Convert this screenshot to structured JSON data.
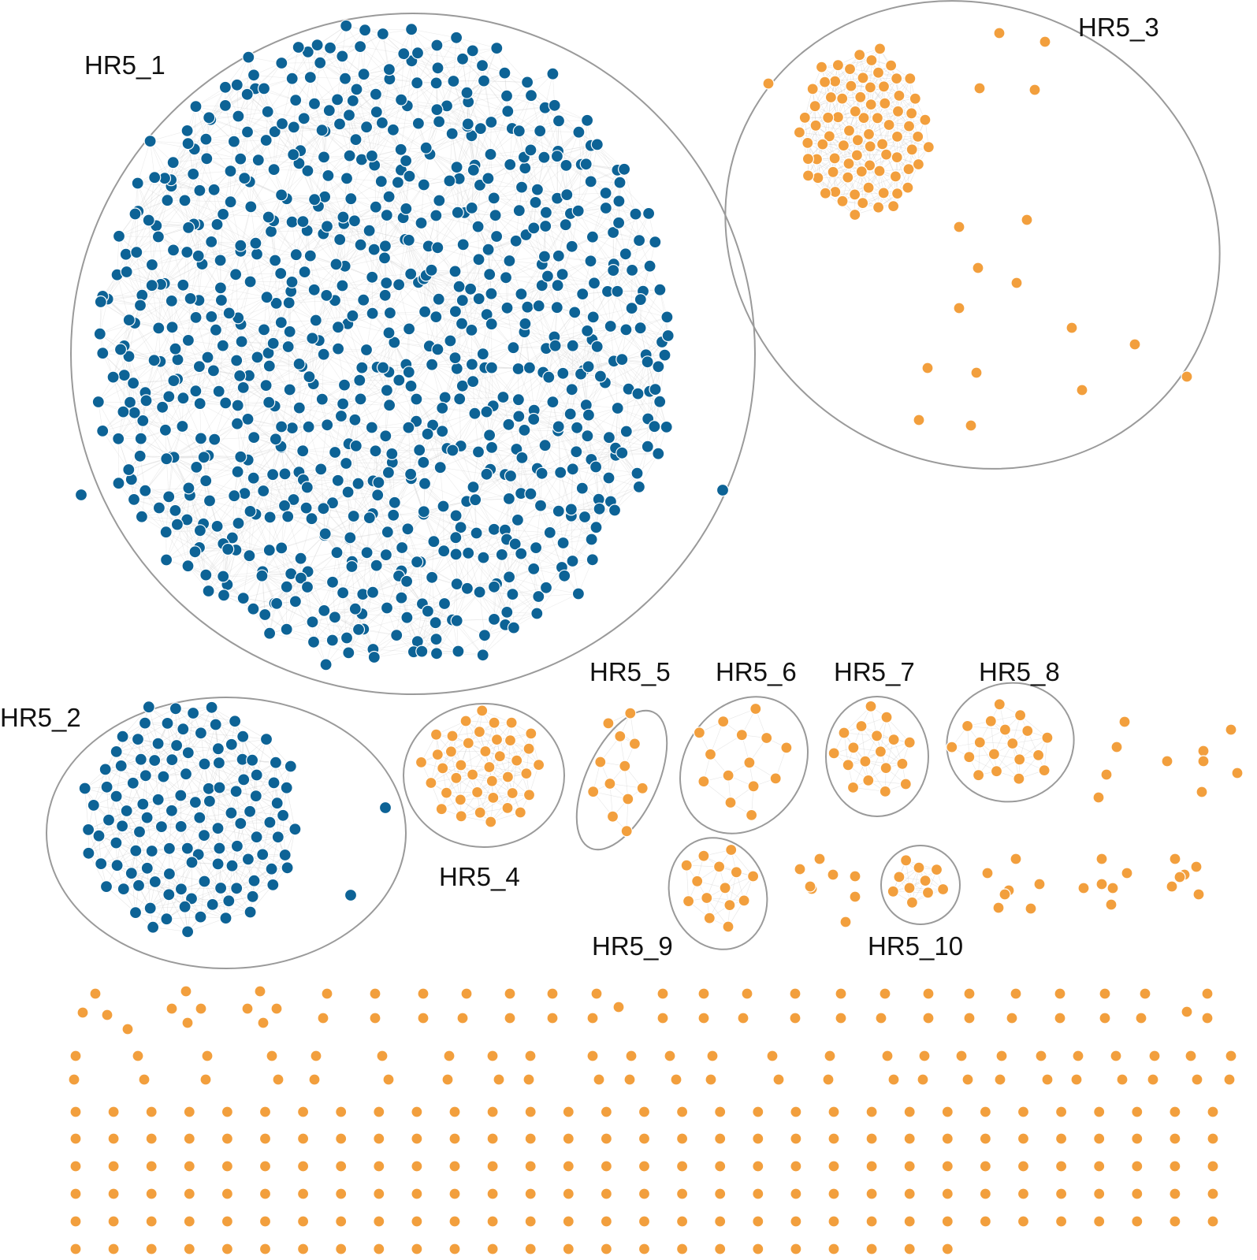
{
  "colors": {
    "large_module": "#0d6396",
    "small_module": "#f29f3d",
    "node_stroke": "#ffffff",
    "edge": "#c8c8c8",
    "outline": "#9a9a9a"
  },
  "clusters": [
    {
      "id": "HR5_1",
      "label": "HR5_1",
      "color_key": "large_module",
      "node_count": 800,
      "density": "high"
    },
    {
      "id": "HR5_2",
      "label": "HR5_2",
      "color_key": "large_module",
      "node_count": 120,
      "density": "medium"
    },
    {
      "id": "HR5_3",
      "label": "HR5_3",
      "color_key": "small_module",
      "node_count": 80,
      "density": "medium"
    },
    {
      "id": "HR5_4",
      "label": "HR5_4",
      "color_key": "small_module",
      "node_count": 40,
      "density": "medium"
    },
    {
      "id": "HR5_5",
      "label": "HR5_5",
      "color_key": "small_module",
      "node_count": 12,
      "density": "low"
    },
    {
      "id": "HR5_6",
      "label": "HR5_6",
      "color_key": "small_module",
      "node_count": 14,
      "density": "low"
    },
    {
      "id": "HR5_7",
      "label": "HR5_7",
      "color_key": "small_module",
      "node_count": 18,
      "density": "low"
    },
    {
      "id": "HR5_8",
      "label": "HR5_8",
      "color_key": "small_module",
      "node_count": 18,
      "density": "low"
    },
    {
      "id": "HR5_9",
      "label": "HR5_9",
      "color_key": "small_module",
      "node_count": 14,
      "density": "low"
    },
    {
      "id": "HR5_10",
      "label": "HR5_10",
      "color_key": "small_module",
      "node_count": 10,
      "density": "low"
    }
  ],
  "unlabeled_small_components": "orange",
  "isolated_nodes": "orange"
}
